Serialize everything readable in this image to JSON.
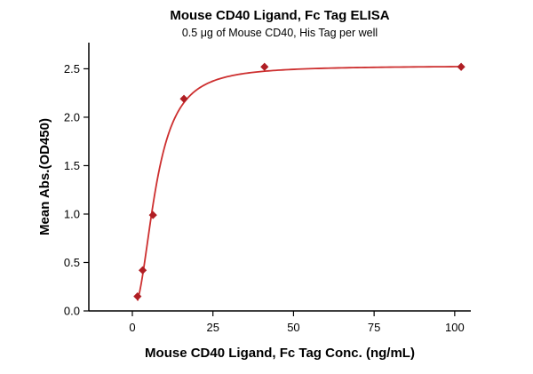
{
  "chart_data": {
    "type": "scatter",
    "title": "Mouse CD40 Ligand, Fc Tag ELISA",
    "subtitle": "0.5 μg of Mouse CD40, His Tag per well",
    "xlabel": "Mouse CD40 Ligand, Fc Tag Conc. (ng/mL)",
    "ylabel": "Mean Abs.(OD450)",
    "points": {
      "x": [
        1.6,
        3.2,
        6.4,
        16,
        41,
        102
      ],
      "y": [
        0.15,
        0.42,
        0.99,
        2.19,
        2.52,
        2.52
      ]
    },
    "fit": {
      "model": "4PL",
      "bottom": 0.02,
      "top": 2.53,
      "ec50": 7.3,
      "hill": 2.2
    },
    "x_ticks": [
      0,
      25,
      50,
      75,
      100
    ],
    "x_tick_labels": [
      "0",
      "25",
      "50",
      "75",
      "100"
    ],
    "y_ticks": [
      0.0,
      0.5,
      1.0,
      1.5,
      2.0,
      2.5
    ],
    "y_tick_labels": [
      "0.0",
      "0.5",
      "1.0",
      "1.5",
      "2.0",
      "2.5"
    ],
    "xlim": [
      -13.5,
      105
    ],
    "ylim": [
      0,
      2.77
    ],
    "grid": false,
    "legend": "none",
    "line_color": "#cd2f2f",
    "marker_color": "#b01e24",
    "axis_color": "#000000",
    "marker_shape": "diamond"
  }
}
